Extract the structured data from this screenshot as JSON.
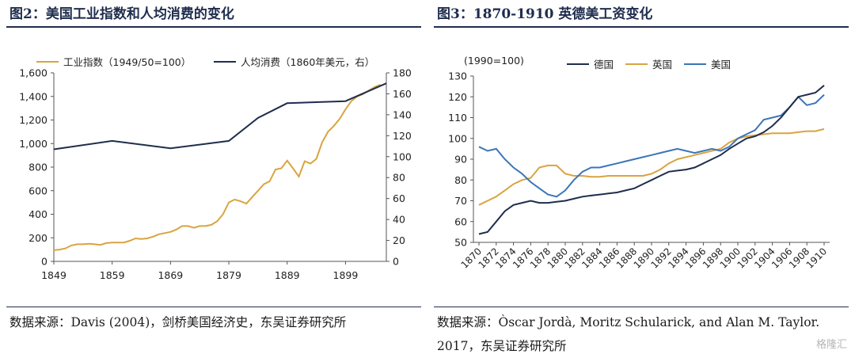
{
  "chart_data": [
    {
      "type": "line",
      "title": "图2：美国工业指数和人均消费的变化",
      "x_ticks": [
        "1849",
        "1859",
        "1869",
        "1879",
        "1889",
        "1899"
      ],
      "xlim": [
        1849,
        1906
      ],
      "ylim_left": [
        0,
        1600
      ],
      "ylim_right": [
        0,
        180
      ],
      "yticks_left": [
        "0",
        "200",
        "400",
        "600",
        "800",
        "1,000",
        "1,200",
        "1,400",
        "1,600"
      ],
      "yticks_right": [
        "0",
        "20",
        "40",
        "60",
        "80",
        "100",
        "120",
        "140",
        "160",
        "180"
      ],
      "series": [
        {
          "name": "工业指数（1949/50=100）",
          "axis": "left",
          "color": "#d9a441",
          "x": [
            1849,
            1850,
            1851,
            1852,
            1853,
            1854,
            1855,
            1856,
            1857,
            1858,
            1859,
            1860,
            1861,
            1862,
            1863,
            1864,
            1865,
            1866,
            1867,
            1868,
            1869,
            1870,
            1871,
            1872,
            1873,
            1874,
            1875,
            1876,
            1877,
            1878,
            1879,
            1880,
            1881,
            1882,
            1883,
            1884,
            1885,
            1886,
            1887,
            1888,
            1889,
            1890,
            1891,
            1892,
            1893,
            1894,
            1895,
            1896,
            1897,
            1898,
            1899,
            1900,
            1901,
            1902,
            1903,
            1904,
            1905
          ],
          "values": [
            95,
            100,
            110,
            135,
            145,
            145,
            150,
            145,
            140,
            155,
            160,
            160,
            160,
            175,
            195,
            190,
            195,
            210,
            230,
            240,
            250,
            270,
            300,
            300,
            285,
            300,
            300,
            310,
            340,
            400,
            500,
            525,
            510,
            490,
            545,
            600,
            655,
            680,
            780,
            790,
            855,
            790,
            720,
            850,
            830,
            870,
            1010,
            1100,
            1150,
            1210,
            1290,
            1360,
            1400,
            1420,
            1450,
            1480,
            1500
          ]
        },
        {
          "name": "人均消费（1860年美元，右）",
          "axis": "right",
          "color": "#1f2d4d",
          "x": [
            1849,
            1859,
            1869,
            1879,
            1884,
            1889,
            1899,
            1906
          ],
          "values": [
            107,
            115,
            108,
            115,
            137,
            151,
            153,
            170
          ]
        }
      ],
      "source": "数据来源：Davis (2004)，剑桥美国经济史，东吴证券研究所"
    },
    {
      "type": "line",
      "title": "图3：1870-1910 英德美工资变化",
      "ylabel": "(1990=100)",
      "ylim": [
        50,
        130
      ],
      "yticks": [
        "50",
        "60",
        "70",
        "80",
        "90",
        "100",
        "110",
        "120",
        "130"
      ],
      "categories": [
        "1870",
        "1871",
        "1872",
        "1873",
        "1874",
        "1875",
        "1876",
        "1877",
        "1878",
        "1879",
        "1880",
        "1881",
        "1882",
        "1883",
        "1884",
        "1885",
        "1886",
        "1887",
        "1888",
        "1889",
        "1890",
        "1891",
        "1892",
        "1893",
        "1894",
        "1895",
        "1896",
        "1897",
        "1898",
        "1899",
        "1900",
        "1901",
        "1902",
        "1903",
        "1904",
        "1905",
        "1906",
        "1907",
        "1908",
        "1909",
        "1910"
      ],
      "x_tick_labels": [
        "1870",
        "1872",
        "1874",
        "1876",
        "1878",
        "1880",
        "1882",
        "1884",
        "1886",
        "1888",
        "1890",
        "1892",
        "1894",
        "1896",
        "1898",
        "1900",
        "1902",
        "1904",
        "1906",
        "1908",
        "1910"
      ],
      "series": [
        {
          "name": "德国",
          "color": "#1f2d4d",
          "values": [
            54,
            55,
            60,
            65,
            68,
            69,
            70,
            69,
            69,
            69.5,
            70,
            71,
            72,
            72.5,
            73,
            73.5,
            74,
            75,
            76,
            78,
            80,
            82,
            84,
            84.5,
            85,
            86,
            88,
            90,
            92,
            95,
            97.5,
            100,
            101,
            103,
            106,
            110,
            115,
            120,
            121,
            122,
            125.5
          ]
        },
        {
          "name": "英国",
          "color": "#d9a441",
          "values": [
            68,
            70,
            72,
            75,
            78,
            80,
            81,
            86,
            87,
            87,
            83,
            82,
            82,
            81.5,
            81.5,
            82,
            82,
            82,
            82,
            82,
            83,
            85,
            88,
            90,
            91,
            92,
            93,
            94,
            95,
            98,
            100,
            101,
            101.5,
            102,
            102.5,
            102.5,
            102.5,
            103,
            103.5,
            103.5,
            104.5
          ]
        },
        {
          "name": "美国",
          "color": "#3d75b8",
          "values": [
            96,
            94,
            95,
            90,
            86,
            83,
            79,
            76,
            73,
            72,
            75,
            80,
            84,
            86,
            86,
            87,
            88,
            89,
            90,
            91,
            92,
            93,
            94,
            95,
            94,
            93,
            94,
            95,
            94,
            96,
            100,
            102,
            104,
            109,
            110,
            111,
            115,
            120,
            116,
            117,
            121
          ]
        }
      ],
      "source": "数据来源：Òscar Jordà, Moritz Schularick, and Alan M. Taylor. 2017，东吴证券研究所"
    }
  ],
  "watermark": "格隆汇"
}
